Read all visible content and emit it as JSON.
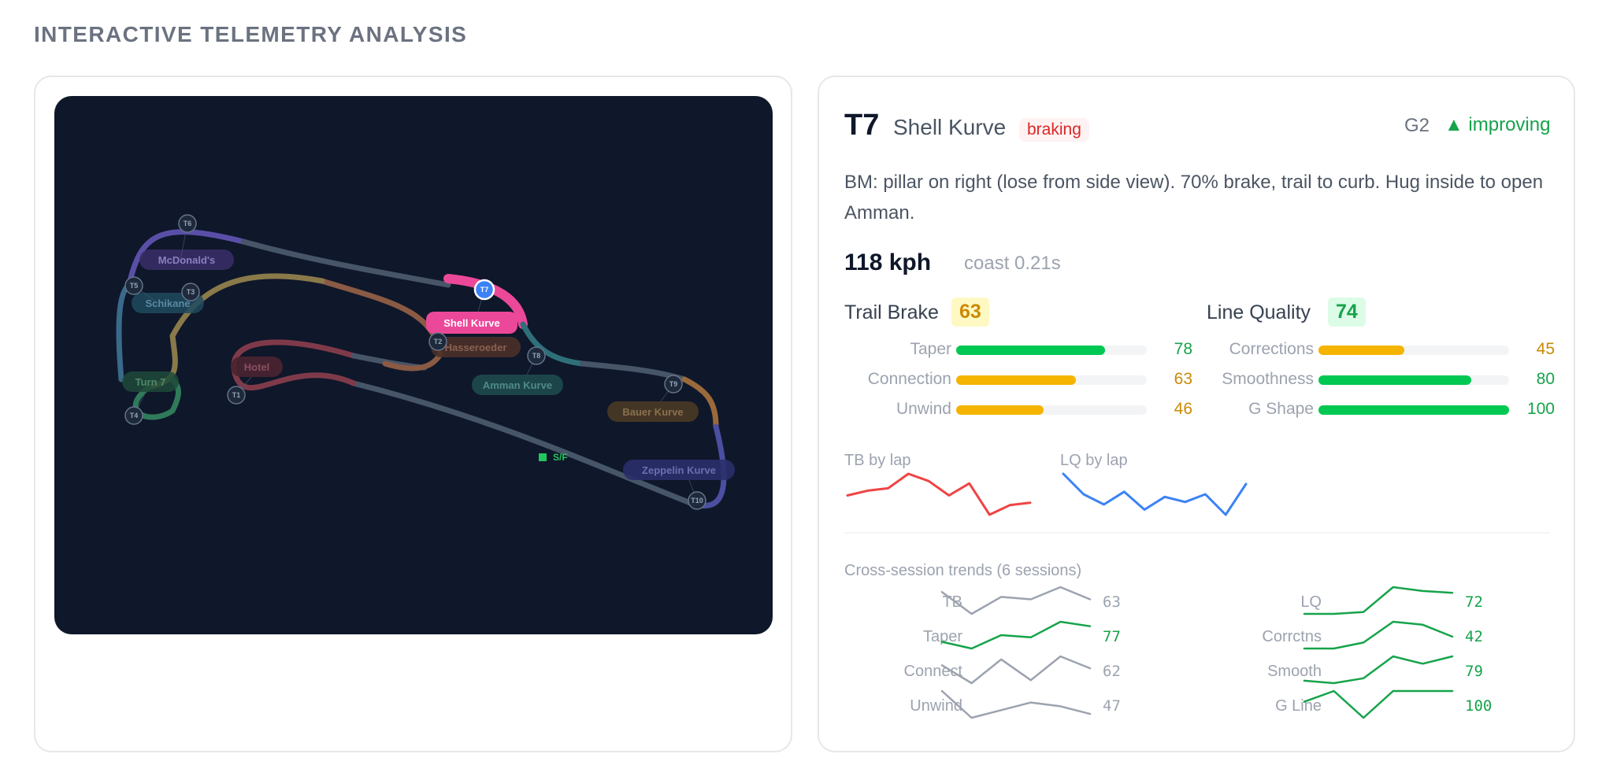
{
  "page": {
    "title": "INTERACTIVE TELEMETRY ANALYSIS"
  },
  "map": {
    "start_finish_label": "S/F",
    "selected": "T7",
    "turns": [
      {
        "code": "T6",
        "name": "McDonald's"
      },
      {
        "code": "T5",
        "name": "Schikane"
      },
      {
        "code": "T3",
        "name": ""
      },
      {
        "code": "T4",
        "name": "Turn 7"
      },
      {
        "code": "T1",
        "name": "Hotel"
      },
      {
        "code": "T2",
        "name": "Hasseroeder"
      },
      {
        "code": "T7",
        "name": "Shell Kurve"
      },
      {
        "code": "T8",
        "name": "Amman Kurve"
      },
      {
        "code": "T9",
        "name": "Bauer Kurve"
      },
      {
        "code": "T10",
        "name": "Zeppelin Kurve"
      }
    ]
  },
  "detail": {
    "code": "T7",
    "name": "Shell Kurve",
    "phase": "braking",
    "gear": "G2",
    "trend": "▲ improving",
    "note": "BM: pillar on right (lose from side view). 70% brake, trail to curb. Hug inside to open Amman.",
    "speed": "118  kph",
    "coast": "coast 0.21s",
    "colors": {
      "good": "#16a34a",
      "warn": "#ca8a04",
      "bar_good": "#00c853",
      "bar_warn": "#f5b400"
    },
    "trail_brake": {
      "title": "Trail Brake",
      "score": "63",
      "rows": [
        {
          "label": "Taper",
          "value": "78",
          "fraction": 0.78,
          "status": "good"
        },
        {
          "label": "Connection",
          "value": "63",
          "fraction": 0.63,
          "status": "warn"
        },
        {
          "label": "Unwind",
          "value": "46",
          "fraction": 0.46,
          "status": "warn"
        }
      ]
    },
    "line_quality": {
      "title": "Line Quality",
      "score": "74",
      "rows": [
        {
          "label": "Corrections",
          "value": "45",
          "fraction": 0.45,
          "status": "warn"
        },
        {
          "label": "Smoothness",
          "value": "80",
          "fraction": 0.8,
          "status": "good"
        },
        {
          "label": "G Shape",
          "value": "100",
          "fraction": 1.0,
          "status": "good"
        }
      ]
    },
    "tb_by_lap": {
      "label": "TB by lap",
      "color": "#ef4444",
      "values": [
        62,
        64,
        65,
        71,
        68,
        62,
        67,
        54,
        58,
        59
      ]
    },
    "lq_by_lap": {
      "label": "LQ by lap",
      "color": "#3b82f6",
      "values": [
        80,
        72,
        68,
        73,
        66,
        71,
        69,
        72,
        64,
        76
      ]
    },
    "cross_session": {
      "title": "Cross-session trends (6 sessions)",
      "left": [
        {
          "label": "TB",
          "value": "63",
          "color": "#9ca3af",
          "values": [
            64,
            55,
            62,
            61,
            66,
            61
          ]
        },
        {
          "label": "Taper",
          "value": "77",
          "color": "#16a34a",
          "values": [
            70,
            67,
            73,
            72,
            79,
            77
          ]
        },
        {
          "label": "Connect",
          "value": "62",
          "color": "#9ca3af",
          "values": [
            63,
            57,
            65,
            58,
            66,
            62
          ]
        },
        {
          "label": "Unwind",
          "value": "47",
          "color": "#9ca3af",
          "values": [
            56,
            42,
            46,
            50,
            48,
            44
          ]
        }
      ],
      "right": [
        {
          "label": "LQ",
          "value": "72",
          "color": "#16a34a",
          "values": [
            62,
            62,
            63,
            76,
            74,
            73
          ]
        },
        {
          "label": "Corrctns",
          "value": "42",
          "color": "#16a34a",
          "values": [
            40,
            40,
            44,
            58,
            56,
            48
          ]
        },
        {
          "label": "Smooth",
          "value": "79",
          "color": "#16a34a",
          "values": [
            72,
            71,
            73,
            82,
            79,
            82
          ]
        },
        {
          "label": "G Line",
          "value": "100",
          "color": "#16a34a",
          "values": [
            96,
            100,
            90,
            100,
            100,
            100
          ]
        }
      ]
    }
  }
}
